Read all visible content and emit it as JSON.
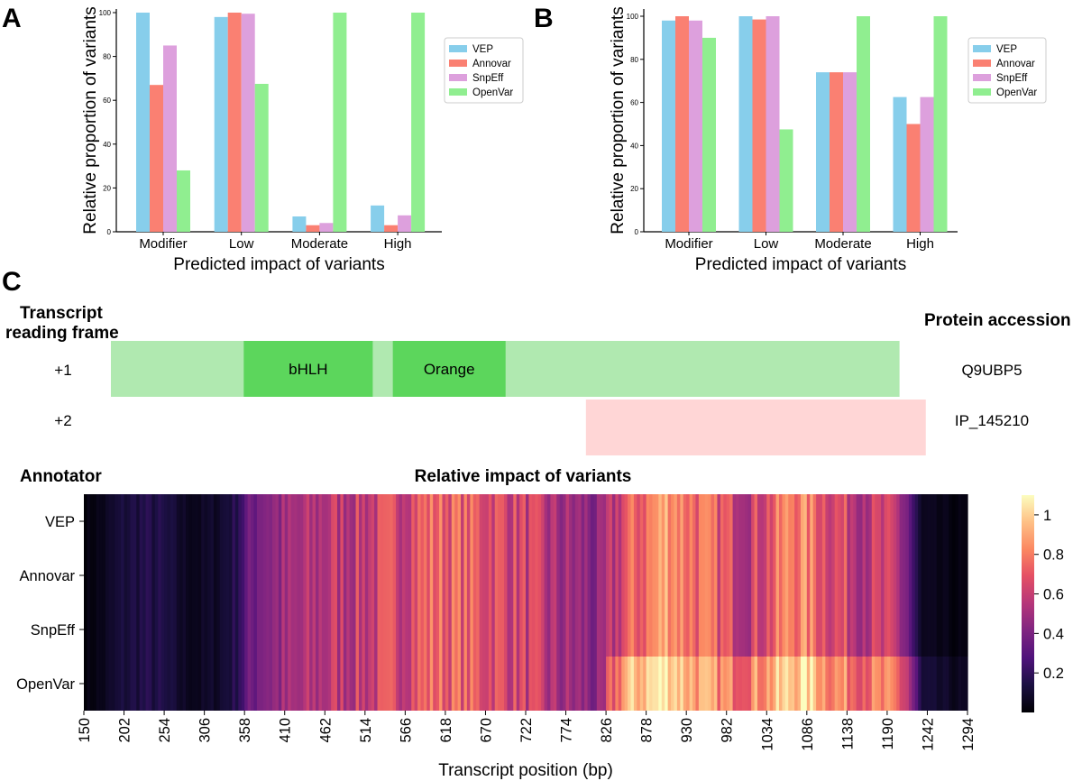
{
  "panels": {
    "a": "A",
    "b": "B",
    "c": "C"
  },
  "colors": {
    "VEP": "#87ceeb",
    "Annovar": "#fa8072",
    "SnpEff": "#dda0dd",
    "OpenVar": "#90ee90"
  },
  "chart_data": [
    {
      "panel": "A",
      "type": "bar",
      "categories": [
        "Modifier",
        "Low",
        "Moderate",
        "High"
      ],
      "series": [
        {
          "name": "VEP",
          "values": [
            100,
            98,
            7,
            12
          ]
        },
        {
          "name": "Annovar",
          "values": [
            67,
            100,
            3,
            3
          ]
        },
        {
          "name": "SnpEff",
          "values": [
            85,
            99.5,
            4,
            7.5
          ]
        },
        {
          "name": "OpenVar",
          "values": [
            28,
            67.5,
            100,
            100
          ]
        }
      ],
      "ylim": [
        0,
        100
      ],
      "yticks": [
        "0",
        "20",
        "40",
        "60",
        "80",
        "100"
      ],
      "xlabel": "Predicted impact of variants",
      "ylabel": "Relative proportion of variants",
      "legend": "top-right"
    },
    {
      "panel": "B",
      "type": "bar",
      "categories": [
        "Modifier",
        "Low",
        "Moderate",
        "High"
      ],
      "series": [
        {
          "name": "VEP",
          "values": [
            98,
            100,
            74,
            62.5
          ]
        },
        {
          "name": "Annovar",
          "values": [
            100,
            98.5,
            74,
            50
          ]
        },
        {
          "name": "SnpEff",
          "values": [
            98,
            100,
            74,
            62.5
          ]
        },
        {
          "name": "OpenVar",
          "values": [
            90,
            47.5,
            100,
            100
          ]
        }
      ],
      "ylim": [
        0,
        100
      ],
      "yticks": [
        "0",
        "20",
        "40",
        "60",
        "80",
        "100"
      ],
      "xlabel": "Predicted impact of variants",
      "ylabel": "Relative proportion of variants",
      "legend": "top-right"
    },
    {
      "panel": "C",
      "type": "heatmap",
      "title": "Relative impact of variants",
      "row_header": "Annotator",
      "rows": [
        "VEP",
        "Annovar",
        "SnpEff",
        "OpenVar"
      ],
      "xlabel": "Transcript position (bp)",
      "xrange": [
        150,
        1294
      ],
      "xticks": [
        "150",
        "202",
        "254",
        "306",
        "358",
        "410",
        "462",
        "514",
        "566",
        "618",
        "670",
        "722",
        "774",
        "826",
        "878",
        "930",
        "982",
        "1034",
        "1086",
        "1138",
        "1190",
        "1242",
        "1294"
      ],
      "colorbar": {
        "min": 0,
        "max": 1.1,
        "ticks": [
          "0.2",
          "0.4",
          "0.6",
          "0.8",
          "1"
        ]
      },
      "profile_base": [
        [
          150,
          0.02
        ],
        [
          175,
          0.05
        ],
        [
          200,
          0.12
        ],
        [
          225,
          0.15
        ],
        [
          250,
          0.14
        ],
        [
          280,
          0.07
        ],
        [
          300,
          0.06
        ],
        [
          325,
          0.09
        ],
        [
          345,
          0.16
        ],
        [
          360,
          0.3
        ],
        [
          380,
          0.45
        ],
        [
          420,
          0.47
        ],
        [
          470,
          0.57
        ],
        [
          520,
          0.6
        ],
        [
          560,
          0.65
        ],
        [
          600,
          0.75
        ],
        [
          640,
          0.72
        ],
        [
          680,
          0.68
        ],
        [
          720,
          0.62
        ],
        [
          760,
          0.5
        ],
        [
          800,
          0.45
        ],
        [
          820,
          0.4
        ],
        [
          826,
          0.48
        ],
        [
          850,
          0.68
        ],
        [
          880,
          0.78
        ],
        [
          905,
          0.92
        ],
        [
          930,
          0.8
        ],
        [
          960,
          0.72
        ],
        [
          990,
          0.65
        ],
        [
          1010,
          0.6
        ],
        [
          1040,
          0.7
        ],
        [
          1065,
          0.84
        ],
        [
          1090,
          0.8
        ],
        [
          1110,
          0.7
        ],
        [
          1140,
          0.62
        ],
        [
          1170,
          0.58
        ],
        [
          1200,
          0.55
        ],
        [
          1215,
          0.42
        ],
        [
          1225,
          0.2
        ],
        [
          1235,
          0.05
        ],
        [
          1294,
          0.02
        ]
      ],
      "openvar_base": [
        [
          150,
          0.02
        ],
        [
          175,
          0.05
        ],
        [
          200,
          0.12
        ],
        [
          225,
          0.15
        ],
        [
          250,
          0.14
        ],
        [
          280,
          0.07
        ],
        [
          300,
          0.06
        ],
        [
          325,
          0.09
        ],
        [
          345,
          0.16
        ],
        [
          360,
          0.3
        ],
        [
          380,
          0.45
        ],
        [
          420,
          0.47
        ],
        [
          470,
          0.57
        ],
        [
          520,
          0.6
        ],
        [
          560,
          0.65
        ],
        [
          600,
          0.75
        ],
        [
          640,
          0.72
        ],
        [
          680,
          0.68
        ],
        [
          720,
          0.62
        ],
        [
          760,
          0.5
        ],
        [
          800,
          0.45
        ],
        [
          820,
          0.4
        ],
        [
          826,
          0.6
        ],
        [
          850,
          0.9
        ],
        [
          880,
          1.0
        ],
        [
          905,
          1.08
        ],
        [
          930,
          0.95
        ],
        [
          960,
          0.85
        ],
        [
          990,
          0.8
        ],
        [
          1010,
          0.82
        ],
        [
          1040,
          0.9
        ],
        [
          1065,
          1.0
        ],
        [
          1090,
          1.02
        ],
        [
          1110,
          0.88
        ],
        [
          1140,
          0.8
        ],
        [
          1170,
          0.78
        ],
        [
          1200,
          0.75
        ],
        [
          1215,
          0.62
        ],
        [
          1225,
          0.35
        ],
        [
          1235,
          0.1
        ],
        [
          1294,
          0.05
        ]
      ]
    }
  ],
  "transcript": {
    "header_left": "Transcript\nreading frame",
    "header_right": "Protein accession",
    "coord_range": [
      150,
      1294
    ],
    "frames": [
      {
        "label": "+1",
        "accession": "Q9UBP5",
        "start": 185,
        "end": 1206,
        "color": "#b0e9b0",
        "domains": [
          {
            "name": "bHLH",
            "start": 357,
            "end": 524,
            "color": "#5cd65c"
          },
          {
            "name": "Orange",
            "start": 550,
            "end": 696,
            "color": "#5cd65c"
          }
        ]
      },
      {
        "label": "+2",
        "accession": "IP_145210",
        "start": 800,
        "end": 1240,
        "color": "#ffd6d6",
        "domains": []
      }
    ]
  }
}
